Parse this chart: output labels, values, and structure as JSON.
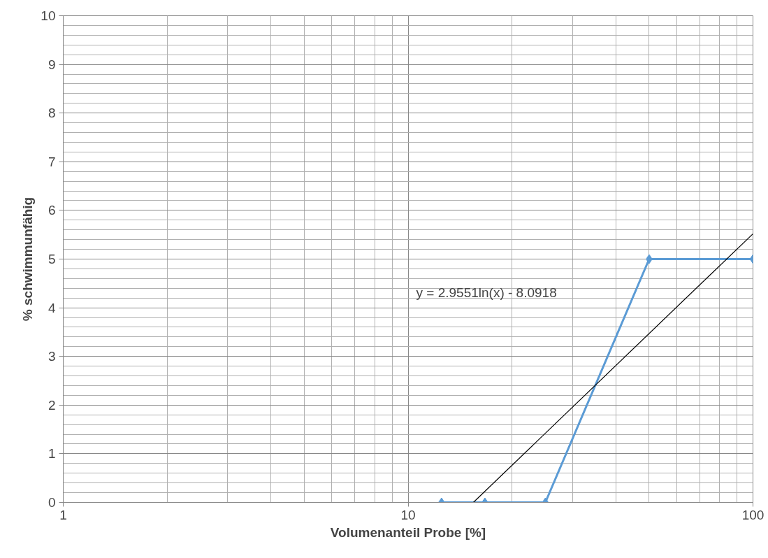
{
  "chart_data": {
    "type": "line",
    "xlabel": "Volumenanteil Probe [%]",
    "ylabel": "% schwimmunfähig",
    "log": "x",
    "xlim": [
      1,
      100
    ],
    "xticks": [
      1,
      10,
      100
    ],
    "ylim": [
      0,
      10
    ],
    "yticks": [
      0,
      1,
      2,
      3,
      4,
      5,
      6,
      7,
      8,
      9,
      10
    ],
    "grid": true,
    "x": [
      12.5,
      16.7,
      25,
      50,
      100
    ],
    "series": [
      {
        "color": "#5b9bd5",
        "marker": "diamond",
        "values": [
          0,
          0,
          0,
          5,
          5
        ]
      },
      {
        "type": "line",
        "color": "#000000",
        "marker": "none",
        "x": [
          15.46,
          100
        ],
        "values": [
          0,
          5.52
        ]
      }
    ],
    "annotations": [
      "y = 2.9551ln(x) - 8.0918"
    ]
  }
}
